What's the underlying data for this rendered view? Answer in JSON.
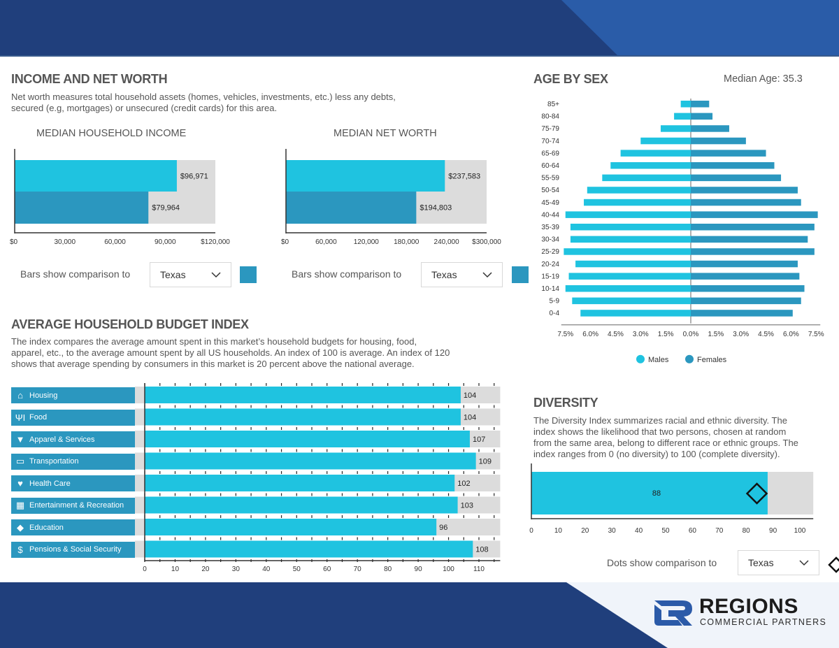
{
  "colors": {
    "primary_bar": "#1fc3e0",
    "comparison_bar": "#2b97bf",
    "track": "#dcdcdc",
    "header_dark": "#203f7c",
    "header_light": "#2a5ca8",
    "footer_bg": "#f0f4fa"
  },
  "income_section": {
    "title": "INCOME AND NET WORTH",
    "description_line1": "Net worth measures total household assets (homes, vehicles, investments, etc.) less any debts,",
    "description_line2": "secured (e.g, mortgages) or unsecured (credit cards) for this area.",
    "compare_label": "Bars show comparison to",
    "compare_value": "Texas"
  },
  "budget_section": {
    "title": "AVERAGE HOUSEHOLD BUDGET INDEX",
    "description_line1": "The index compares the average amount spent in this market’s household budgets for housing, food,",
    "description_line2": "apparel, etc., to the average amount spent by all US households. An index of 100 is average. An index of 120",
    "description_line3": "shows that average spending by consumers in this market is 20 percent above the national average."
  },
  "age_section": {
    "title": "AGE BY SEX",
    "median_age": "Median Age: 35.3"
  },
  "diversity_section": {
    "title": "DIVERSITY",
    "description_line1": "The Diversity Index summarizes racial and ethnic diversity. The",
    "description_line2": "index shows the likelihood that two persons, chosen at random",
    "description_line3": "from the same area, belong to different race or ethnic groups. The",
    "description_line4": "index ranges from 0 (no diversity) to 100 (complete diversity).",
    "compare_label": "Dots show comparison to",
    "compare_value": "Texas"
  },
  "logo": {
    "name": "REGIONS",
    "tagline": "COMMERCIAL PARTNERS"
  },
  "chart_data": [
    {
      "id": "median_household_income",
      "type": "bar",
      "orientation": "horizontal",
      "title": "MEDIAN HOUSEHOLD INCOME",
      "series": [
        {
          "name": "Area",
          "value": 96971,
          "label": "$96,971"
        },
        {
          "name": "Texas",
          "value": 79964,
          "label": "$79,964"
        }
      ],
      "xlim": [
        0,
        120000
      ],
      "ticks": [
        0,
        30000,
        60000,
        90000,
        120000
      ],
      "tick_labels": [
        "$0",
        "30,000",
        "60,000",
        "90,000",
        "$120,000"
      ]
    },
    {
      "id": "median_net_worth",
      "type": "bar",
      "orientation": "horizontal",
      "title": "MEDIAN NET WORTH",
      "series": [
        {
          "name": "Area",
          "value": 237583,
          "label": "$237,583"
        },
        {
          "name": "Texas",
          "value": 194803,
          "label": "$194,803"
        }
      ],
      "xlim": [
        0,
        300000
      ],
      "ticks": [
        0,
        60000,
        120000,
        180000,
        240000,
        300000
      ],
      "tick_labels": [
        "$0",
        "60,000",
        "120,000",
        "180,000",
        "240,000",
        "$300,000"
      ]
    },
    {
      "id": "budget_index",
      "type": "bar",
      "orientation": "horizontal",
      "categories": [
        "Housing",
        "Food",
        "Apparel & Services",
        "Transportation",
        "Health Care",
        "Entertainment & Recreation",
        "Education",
        "Pensions & Social Security"
      ],
      "icons": [
        "house-icon",
        "utensils-icon",
        "shirt-icon",
        "car-icon",
        "heart-icon",
        "ticket-icon",
        "graduation-cap-icon",
        "dollar-coin-icon"
      ],
      "values": [
        104,
        104,
        107,
        109,
        102,
        103,
        96,
        108
      ],
      "xlim": [
        0,
        117
      ],
      "ticks": [
        0,
        10,
        20,
        30,
        40,
        50,
        60,
        70,
        80,
        90,
        100,
        110
      ]
    },
    {
      "id": "age_by_sex",
      "type": "bar",
      "orientation": "horizontal-pyramid",
      "categories": [
        "85+",
        "80-84",
        "75-79",
        "70-74",
        "65-69",
        "60-64",
        "55-59",
        "50-54",
        "45-49",
        "40-44",
        "35-39",
        "30-34",
        "25-29",
        "20-24",
        "15-19",
        "10-14",
        "5-9",
        "0-4"
      ],
      "series": [
        {
          "name": "Males",
          "values": [
            0.6,
            1.0,
            1.8,
            3.0,
            4.2,
            4.8,
            5.3,
            6.2,
            6.4,
            7.5,
            7.2,
            7.2,
            7.6,
            6.9,
            7.3,
            7.5,
            7.1,
            6.6
          ]
        },
        {
          "name": "Females",
          "values": [
            1.1,
            1.3,
            2.3,
            3.3,
            4.5,
            5.0,
            5.4,
            6.4,
            6.6,
            7.6,
            7.4,
            7.0,
            7.4,
            6.4,
            6.5,
            6.8,
            6.6,
            6.1
          ]
        }
      ],
      "xlim": [
        -7.5,
        7.5
      ],
      "tick_labels": [
        "7.5%",
        "6.0%",
        "4.5%",
        "3.0%",
        "1.5%",
        "0.0%",
        "1.5%",
        "3.0%",
        "4.5%",
        "6.0%",
        "7.5%"
      ],
      "legend": [
        "Males",
        "Females"
      ],
      "legend_position": "bottom"
    },
    {
      "id": "diversity_index",
      "type": "bar",
      "orientation": "horizontal",
      "value": 88,
      "value_label": "88",
      "comparison": {
        "name": "Texas",
        "value": 84
      },
      "xlim": [
        0,
        105
      ],
      "ticks": [
        0,
        10,
        20,
        30,
        40,
        50,
        60,
        70,
        80,
        90,
        100
      ]
    }
  ]
}
